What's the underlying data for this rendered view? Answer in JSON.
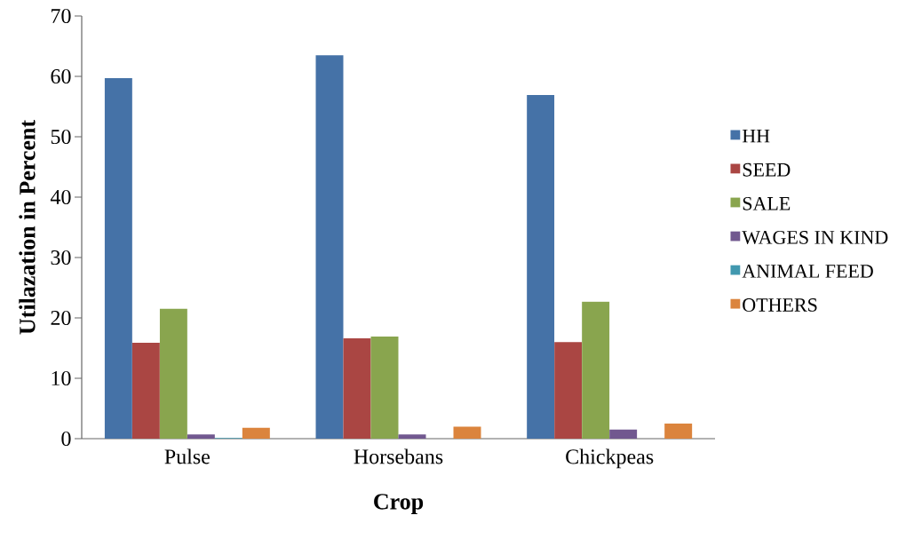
{
  "chart_data": {
    "type": "bar",
    "xlabel": "Crop",
    "ylabel": "Utilazation in Percent",
    "categories": [
      "Pulse",
      "Horsebans",
      "Chickpeas"
    ],
    "series": [
      {
        "name": "HH",
        "color": "#4572a7",
        "values": [
          59.7,
          63.5,
          56.9
        ]
      },
      {
        "name": "SEED",
        "color": "#aa4643",
        "values": [
          15.9,
          16.6,
          16.0
        ]
      },
      {
        "name": "SALE",
        "color": "#89a54e",
        "values": [
          21.5,
          16.9,
          22.7
        ]
      },
      {
        "name": "WAGES IN KIND",
        "color": "#71588f",
        "values": [
          0.7,
          0.7,
          1.5
        ]
      },
      {
        "name": "ANIMAL FEED",
        "color": "#4198af",
        "values": [
          0.1,
          0,
          0
        ]
      },
      {
        "name": "OTHERS",
        "color": "#db843d",
        "values": [
          1.8,
          2.0,
          2.5
        ]
      }
    ],
    "ylim": [
      0,
      70
    ],
    "yticks": [
      0,
      10,
      20,
      30,
      40,
      50,
      60,
      70
    ],
    "grid": false,
    "legend": "right"
  }
}
